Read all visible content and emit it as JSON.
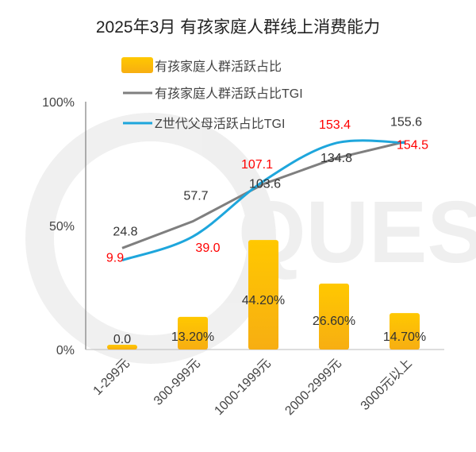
{
  "watermark": "QUES",
  "chart_data": {
    "type": "bar",
    "title": "2025年3月 有孩家庭人群线上消费能力",
    "categories": [
      "1-299元",
      "300-999元",
      "1000-1999元",
      "2000-2999元",
      "3000元以上"
    ],
    "y_ticks": [
      "0%",
      "50%",
      "100%"
    ],
    "ylim": [
      0,
      100
    ],
    "secondary_ylim": [
      -100,
      205
    ],
    "legend_position": "top",
    "grid": false,
    "series": [
      {
        "name": "有孩家庭人群活跃占比",
        "type": "bar",
        "axis": "primary",
        "values": [
          0.0,
          13.2,
          44.2,
          26.6,
          14.7
        ],
        "labels": [
          "0.0",
          "13.20%",
          "44.20%",
          "26.60%",
          "14.70%"
        ],
        "color": "#FFC000"
      },
      {
        "name": "有孩家庭人群活跃占比TGI",
        "type": "line",
        "axis": "secondary",
        "values": [
          24.8,
          57.7,
          103.6,
          134.8,
          155.6
        ],
        "labels": [
          "24.8",
          "57.7",
          "103.6",
          "134.8",
          "155.6"
        ],
        "color": "#7F7F7F",
        "label_color": "#333333"
      },
      {
        "name": "Z世代父母活跃占比TGI",
        "type": "line",
        "smooth": true,
        "axis": "secondary",
        "values": [
          9.9,
          39.0,
          107.1,
          153.4,
          154.5
        ],
        "labels": [
          "9.9",
          "39.0",
          "107.1",
          "153.4",
          "154.5"
        ],
        "color": "#1EA6DC",
        "label_color": "#FF0000"
      }
    ]
  }
}
